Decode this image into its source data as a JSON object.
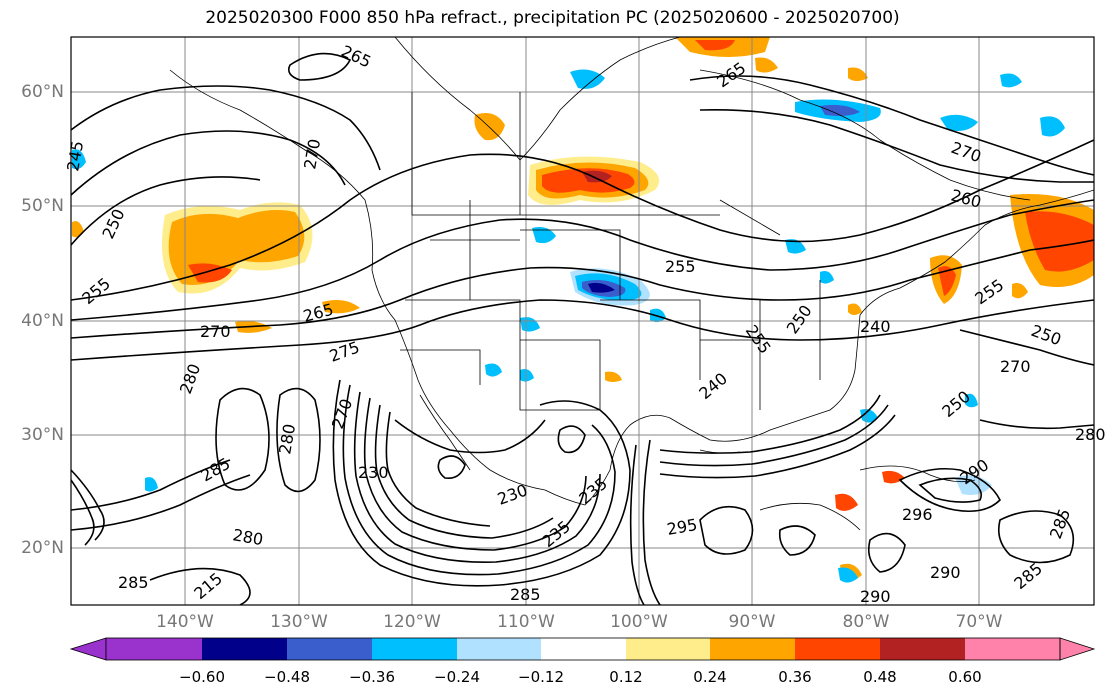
{
  "title": "2025020300 F000 850 hPa refract., precipitation PC (2025020600 - 2025020700)",
  "lat_labels": [
    "60°N",
    "50°N",
    "40°N",
    "30°N",
    "20°N"
  ],
  "lon_labels": [
    "140°W",
    "130°W",
    "120°W",
    "110°W",
    "100°W",
    "90°W",
    "80°W",
    "70°W"
  ],
  "contour_labels": [
    "265",
    "265",
    "270",
    "270",
    "270",
    "260",
    "255",
    "250",
    "255",
    "245",
    "250",
    "265",
    "270",
    "255",
    "255",
    "250",
    "240",
    "275",
    "280",
    "280",
    "270",
    "230",
    "230",
    "235",
    "235",
    "240",
    "250",
    "295",
    "296",
    "290",
    "280",
    "285",
    "285",
    "285",
    "280",
    "290",
    "290",
    "285",
    "285",
    "215"
  ],
  "colorbar": {
    "ticks": [
      "−0.60",
      "−0.48",
      "−0.36",
      "−0.24",
      "−0.12",
      "0.12",
      "0.24",
      "0.36",
      "0.48",
      "0.60"
    ],
    "colors": [
      "#9a32cd",
      "#00008b",
      "#3a5fcd",
      "#00bfff",
      "#b0e2ff",
      "#ffffff",
      "#ffec8b",
      "#ffa500",
      "#ff4500",
      "#b22222",
      "#ff82ab"
    ]
  }
}
